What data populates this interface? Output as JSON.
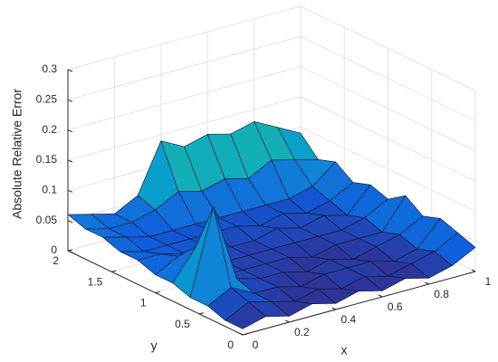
{
  "chart_data": {
    "type": "surface",
    "xlabel": "x",
    "ylabel": "y",
    "zlabel": "Absolute Relative Error",
    "x": [
      0,
      0.1,
      0.2,
      0.3,
      0.4,
      0.5,
      0.6,
      0.7,
      0.8,
      0.9,
      1
    ],
    "y": [
      0,
      0.2,
      0.4,
      0.6,
      0.8,
      1,
      1.2,
      1.4,
      1.6,
      1.8,
      2
    ],
    "z": [
      [
        0.01,
        0.02,
        0.01,
        0.02,
        0.01,
        0.02,
        0.01,
        0.02,
        0.01,
        0.02,
        0.04
      ],
      [
        0.01,
        0.03,
        0.02,
        0.01,
        0.02,
        0.01,
        0.02,
        0.01,
        0.02,
        0.03,
        0.05
      ],
      [
        0.02,
        0.04,
        0.02,
        0.02,
        0.01,
        0.02,
        0.02,
        0.02,
        0.01,
        0.02,
        0.06
      ],
      [
        0.02,
        0.16,
        0.03,
        0.02,
        0.02,
        0.01,
        0.02,
        0.01,
        0.02,
        0.03,
        0.05
      ],
      [
        0.03,
        0.08,
        0.02,
        0.02,
        0.02,
        0.02,
        0.01,
        0.02,
        0.02,
        0.02,
        0.07
      ],
      [
        0.03,
        0.05,
        0.03,
        0.02,
        0.02,
        0.02,
        0.02,
        0.02,
        0.02,
        0.03,
        0.05
      ],
      [
        0.04,
        0.04,
        0.03,
        0.03,
        0.02,
        0.02,
        0.03,
        0.02,
        0.03,
        0.02,
        0.06
      ],
      [
        0.04,
        0.03,
        0.03,
        0.03,
        0.03,
        0.03,
        0.02,
        0.03,
        0.02,
        0.03,
        0.05
      ],
      [
        0.05,
        0.04,
        0.03,
        0.03,
        0.03,
        0.03,
        0.03,
        0.03,
        0.03,
        0.04,
        0.07
      ],
      [
        0.05,
        0.04,
        0.04,
        0.05,
        0.07,
        0.06,
        0.07,
        0.06,
        0.08,
        0.07,
        0.06
      ],
      [
        0.06,
        0.05,
        0.04,
        0.06,
        0.14,
        0.12,
        0.13,
        0.12,
        0.13,
        0.11,
        0.09
      ]
    ],
    "xlim": [
      0,
      1
    ],
    "ylim": [
      0,
      2
    ],
    "zlim": [
      0,
      0.3
    ],
    "xticks": [
      0,
      0.2,
      0.4,
      0.6,
      0.8,
      1
    ],
    "yticks": [
      0,
      0.5,
      1,
      1.5,
      2
    ],
    "zticks": [
      0,
      0.05,
      0.1,
      0.15,
      0.2,
      0.25,
      0.3
    ],
    "grid": true,
    "colormap": "parula"
  }
}
